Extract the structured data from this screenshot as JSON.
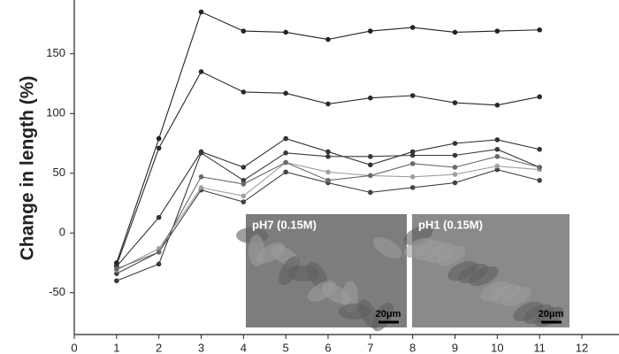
{
  "chart_data": {
    "type": "line",
    "y_label": "Change in length (%)",
    "x": [
      1,
      2,
      3,
      4,
      5,
      6,
      7,
      8,
      9,
      10,
      11
    ],
    "series": [
      {
        "color": "#222222",
        "values": [
          -25,
          79,
          185,
          169,
          168,
          162,
          169,
          172,
          168,
          169,
          170
        ]
      },
      {
        "color": "#2a2a2a",
        "values": [
          -27,
          71,
          135,
          118,
          117,
          108,
          113,
          115,
          109,
          107,
          114
        ]
      },
      {
        "color": "#333333",
        "values": [
          -28,
          13,
          68,
          55,
          79,
          68,
          57,
          68,
          75,
          78,
          70
        ]
      },
      {
        "color": "#3a3a3a",
        "values": [
          -40,
          -26,
          67,
          44,
          67,
          64,
          64,
          65,
          65,
          70,
          55
        ]
      },
      {
        "color": "#444444",
        "values": [
          -34,
          -16,
          36,
          26,
          51,
          42,
          34,
          38,
          42,
          53,
          44
        ]
      },
      {
        "color": "#a0a0a0",
        "values": [
          -31,
          -13,
          38,
          31,
          59,
          51,
          48,
          47,
          49,
          56,
          53
        ]
      },
      {
        "color": "#6a6a6a",
        "values": [
          -30,
          -16,
          47,
          41,
          59,
          44,
          48,
          58,
          55,
          64,
          55
        ]
      }
    ],
    "xlim": [
      0,
      12
    ],
    "xticks": [
      0,
      1,
      2,
      3,
      4,
      5,
      6,
      7,
      8,
      9,
      10,
      11,
      12
    ],
    "ylim": [
      -85,
      195
    ],
    "yticks": [
      -50,
      0,
      50,
      100,
      150
    ],
    "insets": [
      {
        "label": "pH7 (0.15M)",
        "scale_bar": "20μm"
      },
      {
        "label": "pH1 (0.15M)",
        "scale_bar": "20μm"
      }
    ]
  }
}
